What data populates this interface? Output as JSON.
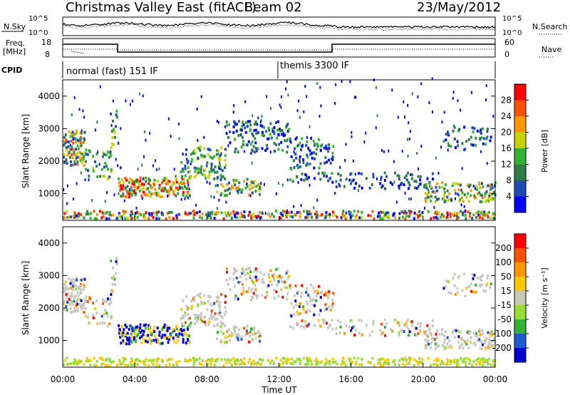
{
  "header": {
    "title": "Christmas Valley East (fitACF)",
    "beam": "Beam 02",
    "date": "23/May/2012"
  },
  "aux": {
    "nsky_label": "N.Sky",
    "nsky_ticks": [
      "10^5",
      "10^0"
    ],
    "nsearch_label": "N.Search",
    "nsearch_ticks": [
      "10^5",
      "10^0"
    ],
    "freq_label": "Freq.",
    "freq_unit": "[MHz]",
    "freq_ticks": [
      "18",
      "8"
    ],
    "nave_label": "Nave",
    "nave_ticks": [
      "60",
      "0"
    ],
    "cpid_label": "CPID",
    "cpid_modes": [
      "normal (fast) 151 IF",
      "themis 3300 IF"
    ]
  },
  "colors": {
    "power": [
      "#0000ff",
      "#1e4bb4",
      "#2d7d46",
      "#32b432",
      "#c8d200",
      "#ff9600",
      "#ff5000",
      "#ff0000"
    ],
    "velocity": [
      "#0000d2",
      "#1e5ad2",
      "#32b432",
      "#96dc32",
      "#c8c8b4",
      "#ffc800",
      "#ff9600",
      "#ff5000",
      "#ff0000"
    ],
    "ground": "#c8c8c0"
  },
  "colorbars": {
    "power": {
      "label": "Power [dB]",
      "ticks": [
        "28",
        "24",
        "20",
        "16",
        "12",
        "8",
        "4"
      ]
    },
    "velocity": {
      "label": "Velocity [m s⁻¹]",
      "ticks": [
        "200",
        "100",
        "50",
        "15",
        "-15",
        "-50",
        "-100",
        "-200"
      ]
    }
  },
  "chart_data": [
    {
      "type": "heatmap",
      "panel": "power",
      "ylabel": "Slant Range [km]",
      "yticks": [
        "4000",
        "3000",
        "2000",
        "1000"
      ],
      "ylim": [
        180,
        4500
      ],
      "xlim": [
        0,
        24
      ],
      "z_label": "Power [dB]",
      "z_range": [
        0,
        30
      ]
    },
    {
      "type": "heatmap",
      "panel": "velocity",
      "ylabel": "Slant Range [km]",
      "yticks": [
        "4000",
        "3000",
        "2000",
        "1000"
      ],
      "ylim": [
        180,
        4500
      ],
      "xlim": [
        0,
        24
      ],
      "xlabel": "Time UT",
      "xticks": [
        "00:00",
        "04:00",
        "08:00",
        "12:00",
        "16:00",
        "20:00",
        "00:00"
      ],
      "z_label": "Velocity [m s⁻¹]",
      "z_range": [
        -200,
        200
      ]
    }
  ]
}
